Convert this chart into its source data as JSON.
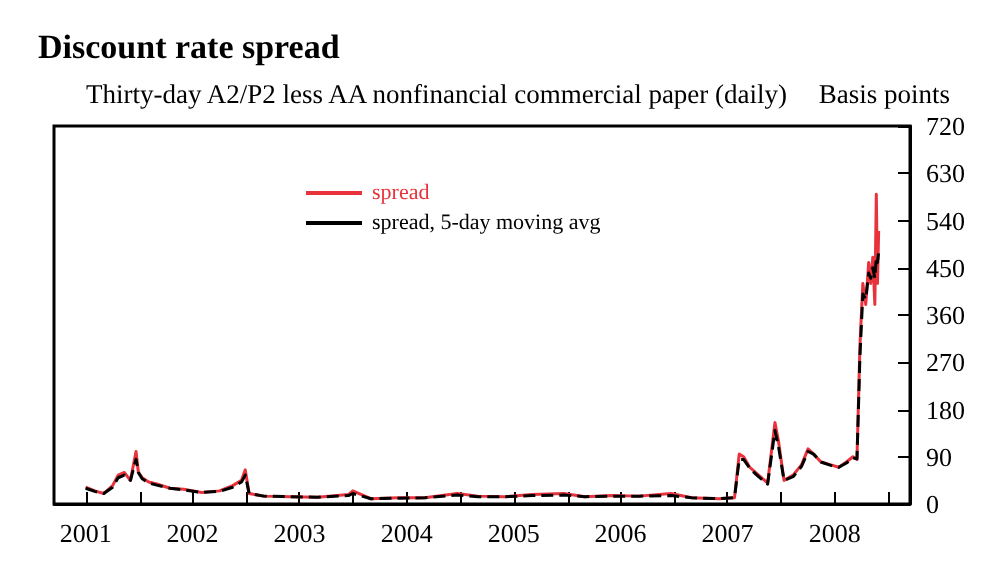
{
  "chart_data": {
    "type": "line",
    "title": "Discount rate spread",
    "subtitle": "Thirty-day A2/P2 less AA nonfinancial commercial paper (daily)",
    "ylabel": "Basis points",
    "xlim": [
      "2001-03-15",
      "2009-03-15"
    ],
    "xticks": [
      {
        "value": "2001-07-01",
        "label": "2001"
      },
      {
        "value": "2002-01-01",
        "label": null
      },
      {
        "value": "2002-07-01",
        "label": "2002"
      },
      {
        "value": "2003-01-01",
        "label": null
      },
      {
        "value": "2003-07-01",
        "label": "2003"
      },
      {
        "value": "2004-01-01",
        "label": null
      },
      {
        "value": "2004-07-01",
        "label": "2004"
      },
      {
        "value": "2005-01-01",
        "label": null
      },
      {
        "value": "2005-07-01",
        "label": "2005"
      },
      {
        "value": "2006-01-01",
        "label": null
      },
      {
        "value": "2006-07-01",
        "label": "2006"
      },
      {
        "value": "2007-01-01",
        "label": null
      },
      {
        "value": "2007-07-01",
        "label": "2007"
      },
      {
        "value": "2008-01-01",
        "label": null
      },
      {
        "value": "2008-07-01",
        "label": "2008"
      },
      {
        "value": "2009-01-01",
        "label": null
      }
    ],
    "ylim": [
      0,
      720
    ],
    "yticks": [
      0,
      90,
      180,
      270,
      360,
      450,
      540,
      630,
      720
    ],
    "legend": "top",
    "grid": false,
    "marker": "none",
    "series": [
      {
        "name": "spread",
        "color": "#e8323c",
        "line_style": "solid",
        "x": [
          "2001-07-01",
          "2001-08-01",
          "2001-09-01",
          "2001-10-01",
          "2001-10-20",
          "2001-11-10",
          "2001-12-01",
          "2001-12-20",
          "2001-12-28",
          "2002-01-10",
          "2002-02-01",
          "2002-03-01",
          "2002-04-15",
          "2002-06-01",
          "2002-08-01",
          "2002-10-01",
          "2002-11-15",
          "2002-12-15",
          "2002-12-28",
          "2003-01-10",
          "2003-03-01",
          "2003-06-01",
          "2003-09-01",
          "2003-12-15",
          "2003-12-30",
          "2004-03-01",
          "2004-06-01",
          "2004-09-01",
          "2004-12-20",
          "2005-03-01",
          "2005-06-01",
          "2005-09-01",
          "2005-12-20",
          "2006-03-01",
          "2006-06-01",
          "2006-09-01",
          "2006-12-20",
          "2007-03-01",
          "2007-06-01",
          "2007-07-25",
          "2007-08-10",
          "2007-08-25",
          "2007-09-15",
          "2007-10-15",
          "2007-11-15",
          "2007-12-10",
          "2007-12-22",
          "2008-01-10",
          "2008-02-10",
          "2008-03-10",
          "2008-04-01",
          "2008-04-20",
          "2008-05-15",
          "2008-06-15",
          "2008-07-15",
          "2008-08-10",
          "2008-09-01",
          "2008-09-15",
          "2008-09-25",
          "2008-10-05",
          "2008-10-15",
          "2008-10-25",
          "2008-11-01",
          "2008-11-08",
          "2008-11-15",
          "2008-11-20",
          "2008-11-24",
          "2008-11-28"
        ],
        "values": [
          32,
          25,
          20,
          35,
          55,
          60,
          45,
          100,
          60,
          50,
          42,
          38,
          30,
          28,
          22,
          25,
          35,
          45,
          65,
          20,
          15,
          14,
          13,
          18,
          25,
          10,
          12,
          12,
          20,
          15,
          14,
          18,
          20,
          14,
          16,
          15,
          20,
          12,
          10,
          12,
          95,
          90,
          70,
          55,
          40,
          155,
          120,
          45,
          55,
          75,
          105,
          95,
          80,
          75,
          70,
          80,
          90,
          85,
          300,
          420,
          380,
          460,
          420,
          470,
          380,
          590,
          420,
          520
        ]
      },
      {
        "name": "spread, 5-day moving avg",
        "color": "#000000",
        "line_style": "dashed",
        "x": [
          "2001-07-01",
          "2001-08-01",
          "2001-09-01",
          "2001-10-01",
          "2001-10-20",
          "2001-11-10",
          "2001-12-01",
          "2001-12-20",
          "2001-12-28",
          "2002-01-10",
          "2002-02-01",
          "2002-03-01",
          "2002-04-15",
          "2002-06-01",
          "2002-08-01",
          "2002-10-01",
          "2002-11-15",
          "2002-12-15",
          "2002-12-28",
          "2003-01-10",
          "2003-03-01",
          "2003-06-01",
          "2003-09-01",
          "2003-12-15",
          "2003-12-30",
          "2004-03-01",
          "2004-06-01",
          "2004-09-01",
          "2004-12-20",
          "2005-03-01",
          "2005-06-01",
          "2005-09-01",
          "2005-12-20",
          "2006-03-01",
          "2006-06-01",
          "2006-09-01",
          "2006-12-20",
          "2007-03-01",
          "2007-06-01",
          "2007-07-25",
          "2007-08-10",
          "2007-08-25",
          "2007-09-15",
          "2007-10-15",
          "2007-11-15",
          "2007-12-10",
          "2007-12-22",
          "2008-01-10",
          "2008-02-10",
          "2008-03-10",
          "2008-04-01",
          "2008-04-20",
          "2008-05-15",
          "2008-06-15",
          "2008-07-15",
          "2008-08-10",
          "2008-09-01",
          "2008-09-15",
          "2008-09-25",
          "2008-10-05",
          "2008-10-15",
          "2008-10-25",
          "2008-11-01",
          "2008-11-08",
          "2008-11-15",
          "2008-11-20",
          "2008-11-24",
          "2008-11-28"
        ],
        "values": [
          30,
          24,
          20,
          32,
          50,
          55,
          45,
          85,
          60,
          48,
          40,
          36,
          30,
          27,
          22,
          24,
          32,
          42,
          55,
          20,
          15,
          14,
          13,
          16,
          20,
          10,
          11,
          12,
          17,
          14,
          14,
          16,
          17,
          14,
          15,
          15,
          16,
          12,
          10,
          12,
          85,
          85,
          68,
          52,
          38,
          140,
          110,
          45,
          52,
          72,
          100,
          95,
          80,
          74,
          70,
          78,
          88,
          86,
          280,
          400,
          390,
          440,
          430,
          450,
          430,
          470,
          460,
          480
        ]
      }
    ]
  }
}
